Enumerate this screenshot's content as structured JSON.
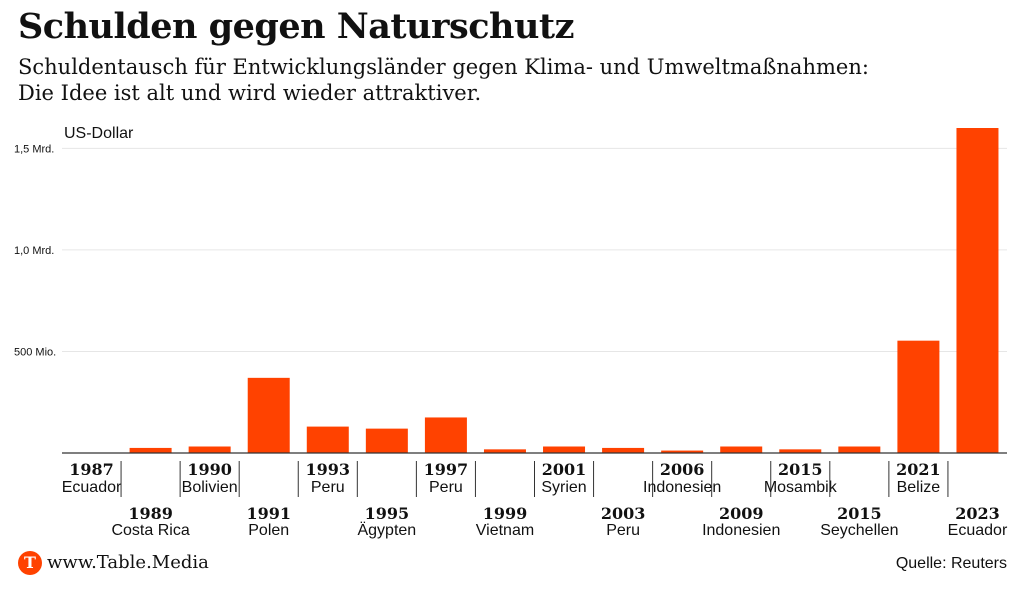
{
  "title": "Schulden gegen Naturschutz",
  "subtitle": {
    "line1": "Schuldentausch für Entwicklungsländer gegen Klima- und Umweltmaßnahmen:",
    "line2": "Die Idee ist alt und wird wieder attraktiver."
  },
  "footer": {
    "logo_letter": "T",
    "site": "www.Table.Media",
    "source": "Quelle: Reuters"
  },
  "colors": {
    "bar": "#ff4200",
    "grid": "#e6e6e6",
    "axis": "#333333",
    "logo": "#ff4200"
  },
  "chart_data": {
    "type": "bar",
    "title": "Schulden gegen Naturschutz",
    "unit_label": "US-Dollar",
    "y_tick_values": [
      500000000,
      1000000000,
      1500000000
    ],
    "y_tick_labels": [
      "500 Mio.",
      "1,0 Mrd.",
      "1,5 Mrd."
    ],
    "ylim": [
      0,
      1600000000
    ],
    "grid": true,
    "legend": "none",
    "categories": [
      {
        "year": "1987",
        "country": "Ecuador",
        "value": 1000000
      },
      {
        "year": "1989",
        "country": "Costa Rica",
        "value": 25000000
      },
      {
        "year": "1990",
        "country": "Bolivien",
        "value": 32000000
      },
      {
        "year": "1991",
        "country": "Polen",
        "value": 370000000
      },
      {
        "year": "1993",
        "country": "Peru",
        "value": 130000000
      },
      {
        "year": "1995",
        "country": "Ägypten",
        "value": 120000000
      },
      {
        "year": "1997",
        "country": "Peru",
        "value": 175000000
      },
      {
        "year": "1999",
        "country": "Vietnam",
        "value": 18000000
      },
      {
        "year": "2001",
        "country": "Syrien",
        "value": 32000000
      },
      {
        "year": "2003",
        "country": "Peru",
        "value": 25000000
      },
      {
        "year": "2006",
        "country": "Indonesien",
        "value": 12000000
      },
      {
        "year": "2009",
        "country": "Indonesien",
        "value": 32000000
      },
      {
        "year": "2015",
        "country": "Mosambik",
        "value": 18000000
      },
      {
        "year": "2015",
        "country": "Seychellen",
        "value": 32000000
      },
      {
        "year": "2021",
        "country": "Belize",
        "value": 553000000
      },
      {
        "year": "2023",
        "country": "Ecuador",
        "value": 1600000000
      }
    ]
  }
}
